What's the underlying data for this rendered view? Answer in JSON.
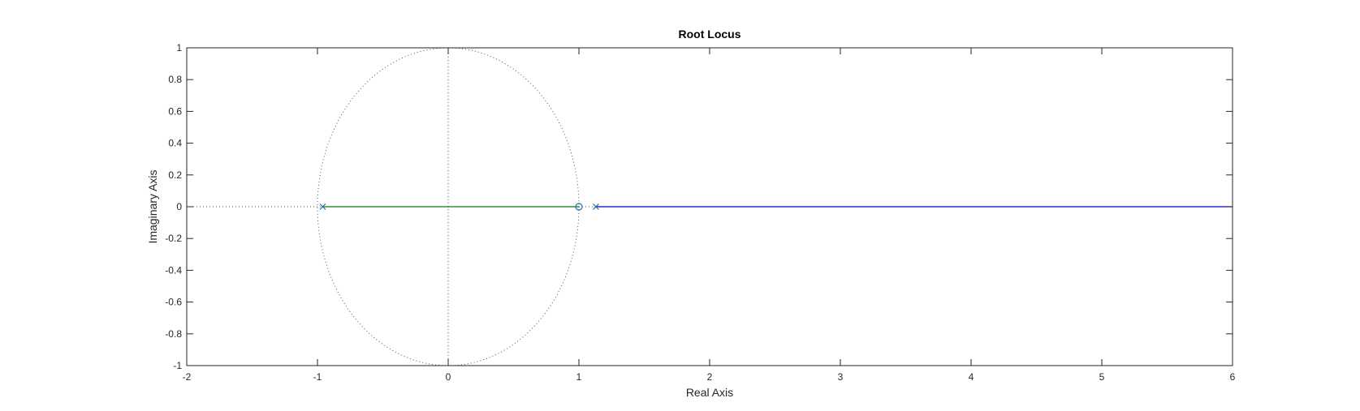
{
  "chart_data": {
    "type": "line",
    "title": "Root Locus",
    "xlabel": "Real Axis",
    "ylabel": "Imaginary Axis",
    "xlim": [
      -2,
      6
    ],
    "ylim": [
      -1,
      1
    ],
    "xticks": [
      -2,
      -1,
      0,
      1,
      2,
      3,
      4,
      5,
      6
    ],
    "yticks": [
      -1,
      -0.8,
      -0.6,
      -0.4,
      -0.2,
      0,
      0.2,
      0.4,
      0.6,
      0.8,
      1
    ],
    "xtick_labels": [
      "-2",
      "-1",
      "0",
      "1",
      "2",
      "3",
      "4",
      "5",
      "6"
    ],
    "ytick_labels": [
      "-1",
      "-0.8",
      "-0.6",
      "-0.4",
      "-0.2",
      "0",
      "0.2",
      "0.4",
      "0.6",
      "0.8",
      "1"
    ],
    "grid": false,
    "unit_circle": {
      "center": [
        0,
        0
      ],
      "radius": 1,
      "style": "dotted"
    },
    "reference_lines": [
      {
        "from": [
          0,
          -1
        ],
        "to": [
          0,
          1
        ],
        "style": "dotted"
      },
      {
        "from": [
          -2,
          0
        ],
        "to": [
          -0.96,
          0
        ],
        "style": "dotted"
      },
      {
        "from": [
          1,
          0
        ],
        "to": [
          1.13,
          0
        ],
        "style": "dotted"
      }
    ],
    "series": [
      {
        "color": "#0e7a0e",
        "x": [
          -0.96,
          1.0
        ],
        "y": [
          0,
          0
        ]
      },
      {
        "color": "#0000cc",
        "x": [
          1.13,
          6.0
        ],
        "y": [
          0,
          0
        ]
      }
    ],
    "poles": [
      {
        "x": -0.96,
        "y": 0
      },
      {
        "x": 1.13,
        "y": 0
      }
    ],
    "zeros": [
      {
        "x": 1.0,
        "y": 0
      }
    ],
    "marker_color": "#1f6fb0",
    "axis_color": "#262626",
    "reference_color": "#555555"
  }
}
